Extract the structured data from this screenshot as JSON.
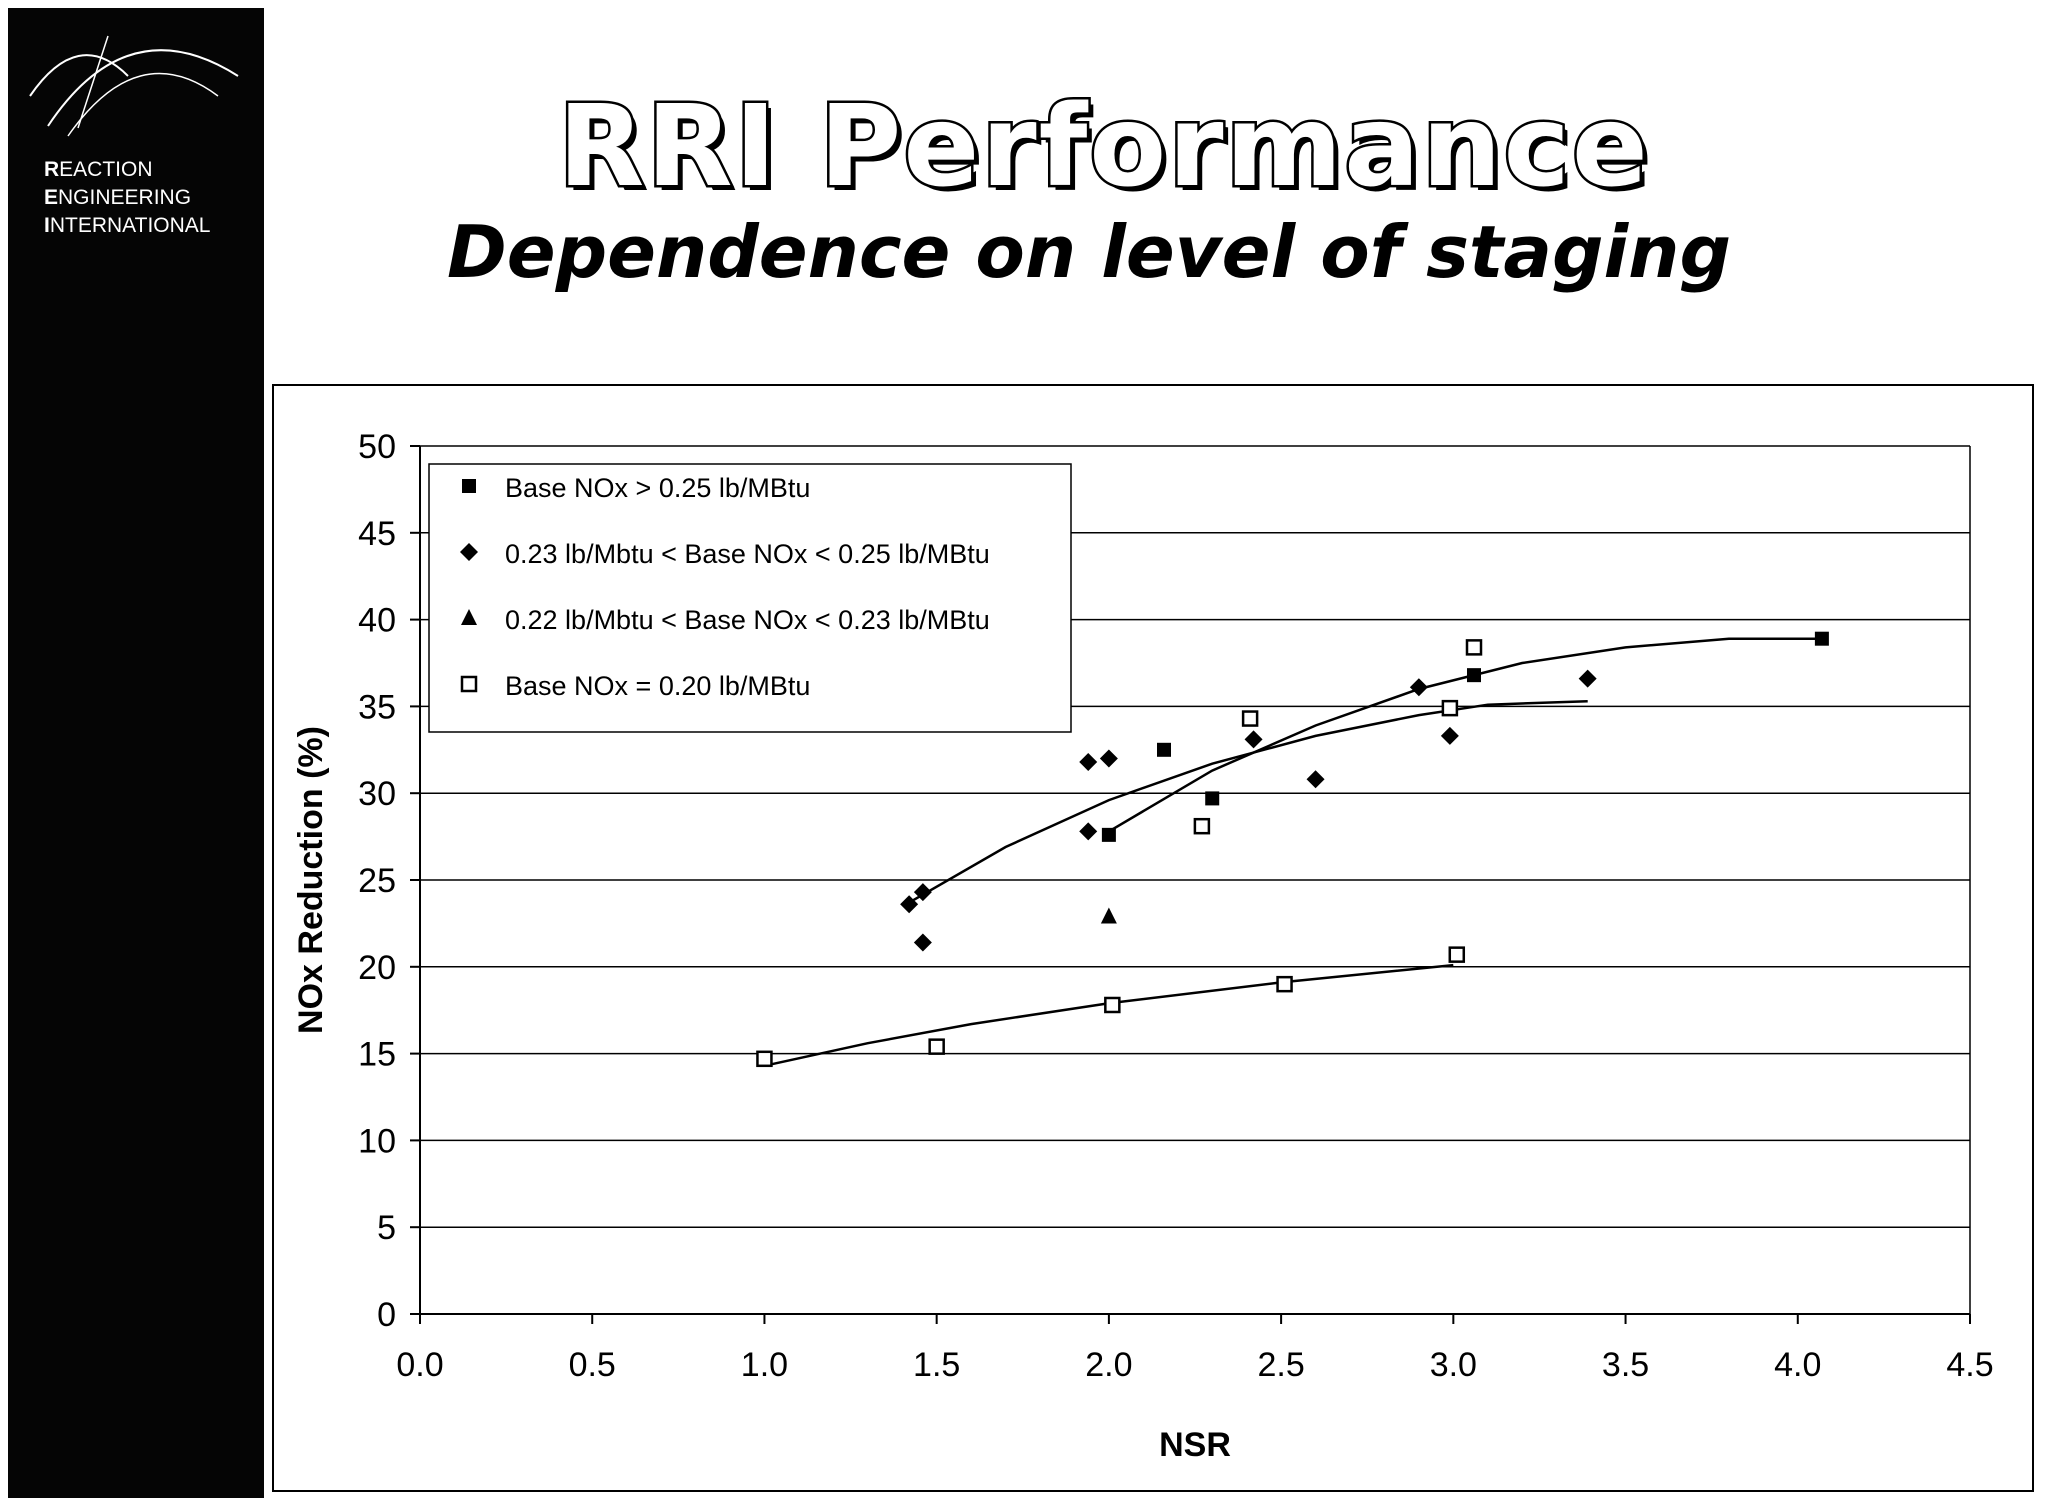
{
  "sidebar": {
    "brand_lines": [
      {
        "initial": "R",
        "rest": "EACTION"
      },
      {
        "initial": "E",
        "rest": "NGINEERING"
      },
      {
        "initial": "I",
        "rest": "NTERNATIONAL"
      }
    ]
  },
  "header": {
    "title": "RRI Performance",
    "subtitle": "Dependence on level of staging"
  },
  "chart_data": {
    "type": "scatter",
    "xlabel": "NSR",
    "ylabel": "NOx Reduction (%)",
    "xlim": [
      0,
      4.5
    ],
    "ylim": [
      0,
      50
    ],
    "x_ticks": [
      "0.0",
      "0.5",
      "1.0",
      "1.5",
      "2.0",
      "2.5",
      "3.0",
      "3.5",
      "4.0",
      "4.5"
    ],
    "y_ticks": [
      "0",
      "5",
      "10",
      "15",
      "20",
      "25",
      "30",
      "35",
      "40",
      "45",
      "50"
    ],
    "grid": "horizontal",
    "legend_position": "top-left",
    "series": [
      {
        "name": "Base NOx > 0.25 lb/MBtu",
        "marker": "filled-square",
        "color": "#000000",
        "points": [
          [
            2.0,
            27.6
          ],
          [
            2.16,
            32.5
          ],
          [
            2.3,
            29.7
          ],
          [
            3.06,
            36.8
          ],
          [
            4.07,
            38.9
          ]
        ],
        "trend": [
          [
            2.0,
            27.8
          ],
          [
            2.3,
            31.3
          ],
          [
            2.6,
            33.9
          ],
          [
            2.9,
            36.0
          ],
          [
            3.2,
            37.5
          ],
          [
            3.5,
            38.4
          ],
          [
            3.8,
            38.9
          ],
          [
            4.07,
            38.9
          ]
        ]
      },
      {
        "name": "0.23 lb/Mbtu < Base NOx < 0.25 lb/MBtu",
        "marker": "filled-diamond",
        "color": "#000000",
        "points": [
          [
            1.42,
            23.6
          ],
          [
            1.46,
            24.3
          ],
          [
            1.46,
            21.4
          ],
          [
            1.94,
            31.8
          ],
          [
            1.94,
            27.8
          ],
          [
            2.0,
            32.0
          ],
          [
            2.42,
            33.1
          ],
          [
            2.6,
            30.8
          ],
          [
            2.9,
            36.1
          ],
          [
            2.99,
            33.3
          ],
          [
            3.39,
            36.6
          ]
        ],
        "trend": [
          [
            1.42,
            23.7
          ],
          [
            1.7,
            26.9
          ],
          [
            2.0,
            29.6
          ],
          [
            2.3,
            31.7
          ],
          [
            2.6,
            33.3
          ],
          [
            2.9,
            34.5
          ],
          [
            3.1,
            35.1
          ],
          [
            3.39,
            35.3
          ]
        ]
      },
      {
        "name": "0.22 lb/Mbtu < Base NOx < 0.23 lb/MBtu",
        "marker": "filled-triangle",
        "color": "#000000",
        "points": [
          [
            2.0,
            22.9
          ]
        ]
      },
      {
        "name": "Base NOx = 0.20 lb/MBtu",
        "marker": "hollow-square",
        "color": "#000000",
        "points": [
          [
            1.0,
            14.7
          ],
          [
            1.5,
            15.4
          ],
          [
            2.01,
            17.8
          ],
          [
            2.41,
            34.3
          ],
          [
            2.27,
            28.1
          ],
          [
            2.51,
            19.0
          ],
          [
            2.99,
            34.9
          ],
          [
            3.01,
            20.7
          ],
          [
            3.06,
            38.4
          ]
        ],
        "trend": [
          [
            1.0,
            14.3
          ],
          [
            1.3,
            15.6
          ],
          [
            1.6,
            16.7
          ],
          [
            2.0,
            17.9
          ],
          [
            2.5,
            19.1
          ],
          [
            3.0,
            20.1
          ]
        ]
      }
    ]
  }
}
